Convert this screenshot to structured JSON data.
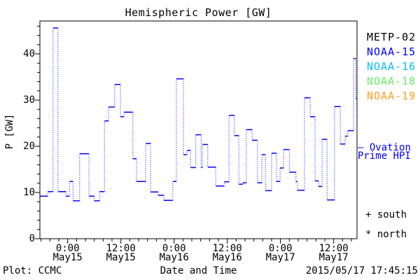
{
  "title": "Hemispheric Power [GW]",
  "y_axis": {
    "label": "P [GW]",
    "tick_labels": [
      "0",
      "10",
      "20",
      "30",
      "40"
    ],
    "tick_values": [
      0,
      10,
      20,
      30,
      40
    ],
    "minor_step": 2,
    "range": [
      0,
      47.1
    ]
  },
  "x_axis": {
    "label": "Date and Time",
    "major_tick_hours": [
      0,
      12,
      24,
      36,
      48,
      60
    ],
    "minor_step_hours": 2,
    "range_hours": [
      -6.3,
      65.3
    ],
    "ticks": [
      {
        "time": "0:00",
        "date": "May15"
      },
      {
        "time": "12:00",
        "date": "May15"
      },
      {
        "time": "0:00",
        "date": "May16"
      },
      {
        "time": "12:00",
        "date": "May16"
      },
      {
        "time": "0:00",
        "date": "May17"
      },
      {
        "time": "12:00",
        "date": "May17"
      }
    ]
  },
  "legend": {
    "satellites": [
      {
        "label": "METP-02",
        "color": "#000000"
      },
      {
        "label": "NOAA-15",
        "color": "#0000FF"
      },
      {
        "label": "NOAA-16",
        "color": "#00BFFF"
      },
      {
        "label": "NOAA-18",
        "color": "#66EE66"
      },
      {
        "label": "NOAA-19",
        "color": "#FFA020"
      }
    ],
    "ovation": {
      "dash": "–",
      "line1": "Ovation",
      "line2": "Prime HPI",
      "color": "#0000FF"
    },
    "markers": [
      {
        "symbol": "+",
        "label": "south"
      },
      {
        "symbol": "*",
        "label": "north"
      }
    ]
  },
  "footer": {
    "left": "Plot: CCMC",
    "timestamp": "2015/05/17 17:45:15"
  },
  "chart_data": {
    "type": "line",
    "style": "steps, solid horizontals with dotted vertical risers",
    "title": "Hemispheric Power [GW]",
    "xlabel": "Date and Time",
    "ylabel": "P [GW]",
    "ylim": [
      0,
      47.1
    ],
    "xlim_hours": [
      -6.3,
      65.3
    ],
    "hours_reference": "hours relative to May15 0:00 (labels shown on axis)",
    "grid": false,
    "legend_position": "right outside",
    "series": [
      {
        "name": "Ovation Prime HPI",
        "color": "#0000FF",
        "end_hour": 65.3,
        "steps_hour_gw": [
          [
            -6.3,
            9.2
          ],
          [
            -4.5,
            10.2
          ],
          [
            -3.3,
            45.6
          ],
          [
            -2.2,
            10.2
          ],
          [
            -0.4,
            9.2
          ],
          [
            0.4,
            12.4
          ],
          [
            1.2,
            8.2
          ],
          [
            2.7,
            18.4
          ],
          [
            4.8,
            9.2
          ],
          [
            6.0,
            8.2
          ],
          [
            7.2,
            10.2
          ],
          [
            8.3,
            25.5
          ],
          [
            9.2,
            28.5
          ],
          [
            10.6,
            33.4
          ],
          [
            11.9,
            26.4
          ],
          [
            12.7,
            27.4
          ],
          [
            14.7,
            17.3
          ],
          [
            15.5,
            12.4
          ],
          [
            17.6,
            20.6
          ],
          [
            18.7,
            10.1
          ],
          [
            20.4,
            9.4
          ],
          [
            21.7,
            8.3
          ],
          [
            23.7,
            12.4
          ],
          [
            24.5,
            34.6
          ],
          [
            26.1,
            18.2
          ],
          [
            26.9,
            19.1
          ],
          [
            27.7,
            15.4
          ],
          [
            28.9,
            22.5
          ],
          [
            30.1,
            15.4
          ],
          [
            30.4,
            20.4
          ],
          [
            31.6,
            15.5
          ],
          [
            33.4,
            11.4
          ],
          [
            35.3,
            12.3
          ],
          [
            36.4,
            26.7
          ],
          [
            37.6,
            22.3
          ],
          [
            38.6,
            11.8
          ],
          [
            39.5,
            12.1
          ],
          [
            40.3,
            23.6
          ],
          [
            41.6,
            21.3
          ],
          [
            42.8,
            12.1
          ],
          [
            43.8,
            18.2
          ],
          [
            44.6,
            10.4
          ],
          [
            46.0,
            18.5
          ],
          [
            47.1,
            12.4
          ],
          [
            47.9,
            15.3
          ],
          [
            48.7,
            19.3
          ],
          [
            50.0,
            14.4
          ],
          [
            51.5,
            12.4
          ],
          [
            51.8,
            10.5
          ],
          [
            53.4,
            30.5
          ],
          [
            54.7,
            26.4
          ],
          [
            55.8,
            12.5
          ],
          [
            56.6,
            11.3
          ],
          [
            57.4,
            21.5
          ],
          [
            58.5,
            8.4
          ],
          [
            60.2,
            28.6
          ],
          [
            61.5,
            20.5
          ],
          [
            62.6,
            22.2
          ],
          [
            63.2,
            23.4
          ],
          [
            64.5,
            39.0
          ],
          [
            65.0,
            30.3
          ]
        ]
      }
    ]
  }
}
